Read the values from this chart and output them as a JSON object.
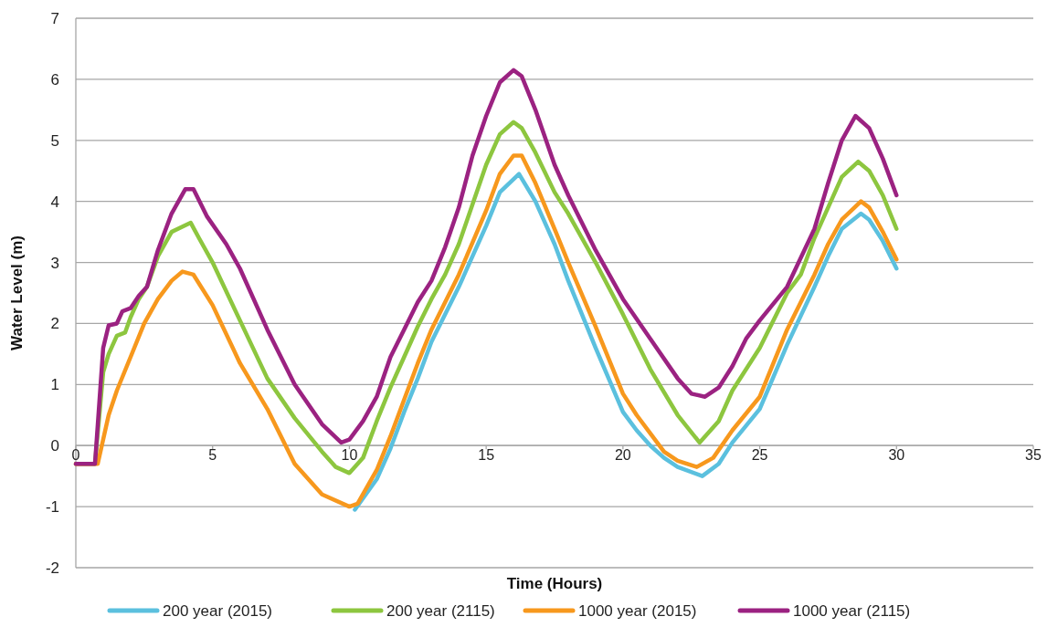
{
  "chart_data": {
    "type": "line",
    "xlabel": "Time (Hours)",
    "ylabel": "Water Level (m)",
    "xlim": [
      0,
      35
    ],
    "xticks": [
      0,
      5,
      10,
      15,
      20,
      25,
      30,
      35
    ],
    "ylim": [
      -2,
      7
    ],
    "yticks": [
      -2,
      -1,
      0,
      1,
      2,
      3,
      4,
      5,
      6,
      7
    ],
    "grid": "y",
    "legend": "bottom",
    "marker": "none",
    "line_style": "solid",
    "series": [
      {
        "name": "200 year (2015)",
        "color": "#5bc0de",
        "x": [
          10.2,
          11,
          11.5,
          12,
          12.5,
          13,
          14,
          15,
          15.5,
          16.2,
          16.8,
          17.5,
          18,
          19,
          20,
          20.5,
          21,
          21.5,
          22,
          22.9,
          23.5,
          24,
          25,
          26,
          27,
          27.5,
          28,
          28.7,
          29,
          29.5,
          30
        ],
        "values": [
          -1.05,
          -0.55,
          -0.05,
          0.55,
          1.1,
          1.7,
          2.6,
          3.6,
          4.15,
          4.45,
          4.0,
          3.3,
          2.7,
          1.6,
          0.55,
          0.25,
          0.0,
          -0.2,
          -0.35,
          -0.5,
          -0.3,
          0.05,
          0.6,
          1.65,
          2.6,
          3.1,
          3.55,
          3.8,
          3.7,
          3.35,
          2.9
        ]
      },
      {
        "name": "200 year (2115)",
        "color": "#8dc63f",
        "x": [
          0,
          0.7,
          1.0,
          1.2,
          1.5,
          1.8,
          2.0,
          2.3,
          2.6,
          3.0,
          3.5,
          4.2,
          4.5,
          5,
          6,
          7,
          8,
          9,
          9.5,
          10,
          10.5,
          11,
          11.5,
          12,
          12.5,
          13,
          13.5,
          14,
          14.5,
          15,
          15.5,
          16,
          16.3,
          16.8,
          17.5,
          18,
          19,
          20,
          21,
          22,
          22.8,
          23.5,
          24,
          25,
          26,
          26.5,
          27,
          27.5,
          28,
          28.6,
          29,
          29.5,
          30
        ],
        "values": [
          -0.3,
          -0.3,
          1.2,
          1.5,
          1.8,
          1.85,
          2.1,
          2.4,
          2.6,
          3.1,
          3.5,
          3.65,
          3.4,
          3.0,
          2.05,
          1.1,
          0.45,
          -0.1,
          -0.35,
          -0.45,
          -0.2,
          0.4,
          0.95,
          1.45,
          1.95,
          2.4,
          2.8,
          3.3,
          3.95,
          4.6,
          5.1,
          5.3,
          5.2,
          4.8,
          4.15,
          3.8,
          3.0,
          2.15,
          1.25,
          0.5,
          0.05,
          0.4,
          0.9,
          1.6,
          2.5,
          2.8,
          3.4,
          3.9,
          4.4,
          4.65,
          4.5,
          4.1,
          3.55
        ]
      },
      {
        "name": "1000 year (2015)",
        "color": "#f7981d",
        "x": [
          0,
          0.8,
          1.2,
          1.5,
          2,
          2.5,
          3,
          3.5,
          3.9,
          4.3,
          5,
          6,
          7,
          8,
          9,
          10,
          10.3,
          11,
          11.5,
          12,
          12.5,
          13,
          14,
          15,
          15.5,
          16,
          16.3,
          16.8,
          17.5,
          18,
          19,
          20,
          20.5,
          21,
          21.5,
          22,
          22.7,
          23.3,
          24,
          25,
          26,
          27,
          27.5,
          28,
          28.7,
          29,
          29.5,
          30
        ],
        "values": [
          -0.3,
          -0.3,
          0.5,
          0.9,
          1.45,
          2.0,
          2.4,
          2.7,
          2.85,
          2.8,
          2.3,
          1.35,
          0.6,
          -0.3,
          -0.8,
          -1.0,
          -0.95,
          -0.4,
          0.15,
          0.75,
          1.35,
          1.9,
          2.8,
          3.85,
          4.45,
          4.75,
          4.75,
          4.3,
          3.55,
          3.0,
          1.95,
          0.85,
          0.5,
          0.2,
          -0.1,
          -0.25,
          -0.35,
          -0.2,
          0.25,
          0.8,
          1.9,
          2.8,
          3.3,
          3.7,
          4.0,
          3.9,
          3.5,
          3.05
        ]
      },
      {
        "name": "1000 year (2115)",
        "color": "#9b2281",
        "x": [
          0,
          0.7,
          1.0,
          1.2,
          1.5,
          1.7,
          2.0,
          2.3,
          2.6,
          3.0,
          3.5,
          4.0,
          4.3,
          4.8,
          5.5,
          6,
          7,
          8,
          9,
          9.7,
          10,
          10.5,
          11,
          11.5,
          12,
          12.5,
          13,
          13.5,
          14,
          14.5,
          15,
          15.5,
          16,
          16.3,
          16.8,
          17.5,
          18,
          19,
          20,
          21,
          22,
          22.5,
          23,
          23.5,
          24,
          24.5,
          25,
          26,
          27,
          27.5,
          28,
          28.5,
          29,
          29.5,
          30
        ],
        "values": [
          -0.3,
          -0.3,
          1.6,
          1.97,
          2.0,
          2.2,
          2.25,
          2.45,
          2.6,
          3.2,
          3.8,
          4.2,
          4.2,
          3.75,
          3.3,
          2.9,
          1.9,
          1.0,
          0.35,
          0.05,
          0.1,
          0.4,
          0.8,
          1.45,
          1.9,
          2.35,
          2.7,
          3.25,
          3.9,
          4.75,
          5.4,
          5.95,
          6.15,
          6.05,
          5.5,
          4.6,
          4.1,
          3.2,
          2.4,
          1.75,
          1.1,
          0.85,
          0.8,
          0.95,
          1.3,
          1.75,
          2.05,
          2.6,
          3.55,
          4.3,
          5.0,
          5.4,
          5.2,
          4.7,
          4.1
        ]
      }
    ]
  }
}
